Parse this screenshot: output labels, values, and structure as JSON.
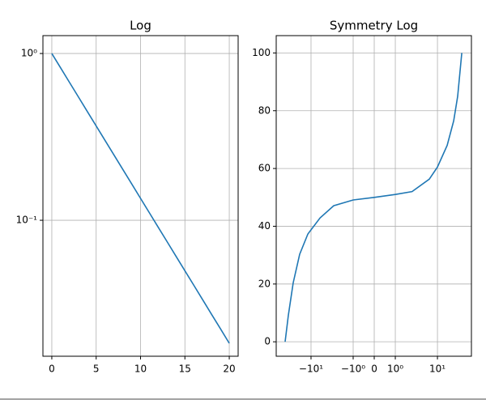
{
  "chart_data": [
    {
      "type": "line",
      "title": "Log",
      "yscale": "log",
      "grid": true,
      "color": "#1f77b4",
      "x": [
        0,
        1,
        2,
        3,
        4,
        5,
        6,
        7,
        8,
        9,
        10,
        11,
        12,
        13,
        14,
        15,
        16,
        17,
        18,
        19,
        20
      ],
      "values": [
        1,
        0.8187,
        0.6703,
        0.5488,
        0.4493,
        0.3679,
        0.3012,
        0.2466,
        0.2019,
        0.1653,
        0.1353,
        0.1108,
        0.0907,
        0.0743,
        0.0608,
        0.0498,
        0.0408,
        0.0334,
        0.0273,
        0.0224,
        0.0183
      ],
      "xlim": [
        -1,
        21
      ],
      "xticks": [
        0,
        5,
        10,
        15,
        20
      ],
      "ylim": [
        0.0153,
        1.28
      ],
      "yticks": [
        {
          "value": 1,
          "label": "10⁰"
        },
        {
          "value": 0.1,
          "label": "10⁻¹"
        }
      ]
    },
    {
      "type": "line",
      "title": "Symmetry Log",
      "xscale": "symlog",
      "grid": true,
      "color": "#1f77b4",
      "x": [
        -41.2,
        -34.5,
        -26.5,
        -18.6,
        -11.9,
        -6.1,
        -2.9,
        -1,
        0,
        1,
        2.5,
        6.4,
        10,
        17,
        24.3,
        30.2,
        37.8
      ],
      "values": [
        0,
        9.2,
        20.4,
        30.3,
        37.3,
        42.9,
        47.1,
        49.1,
        50,
        51,
        52,
        56.3,
        60.5,
        68,
        76.5,
        85,
        100
      ],
      "xlim": [
        -67,
        64
      ],
      "xticks": [
        {
          "value": -10,
          "label": "−10¹"
        },
        {
          "value": -1,
          "label": "−10⁰"
        },
        0,
        {
          "value": 1,
          "label": "10⁰"
        },
        {
          "value": 10,
          "label": "10¹"
        }
      ],
      "ylim": [
        -5,
        106
      ],
      "yticks": [
        0,
        20,
        40,
        60,
        80,
        100
      ]
    }
  ]
}
